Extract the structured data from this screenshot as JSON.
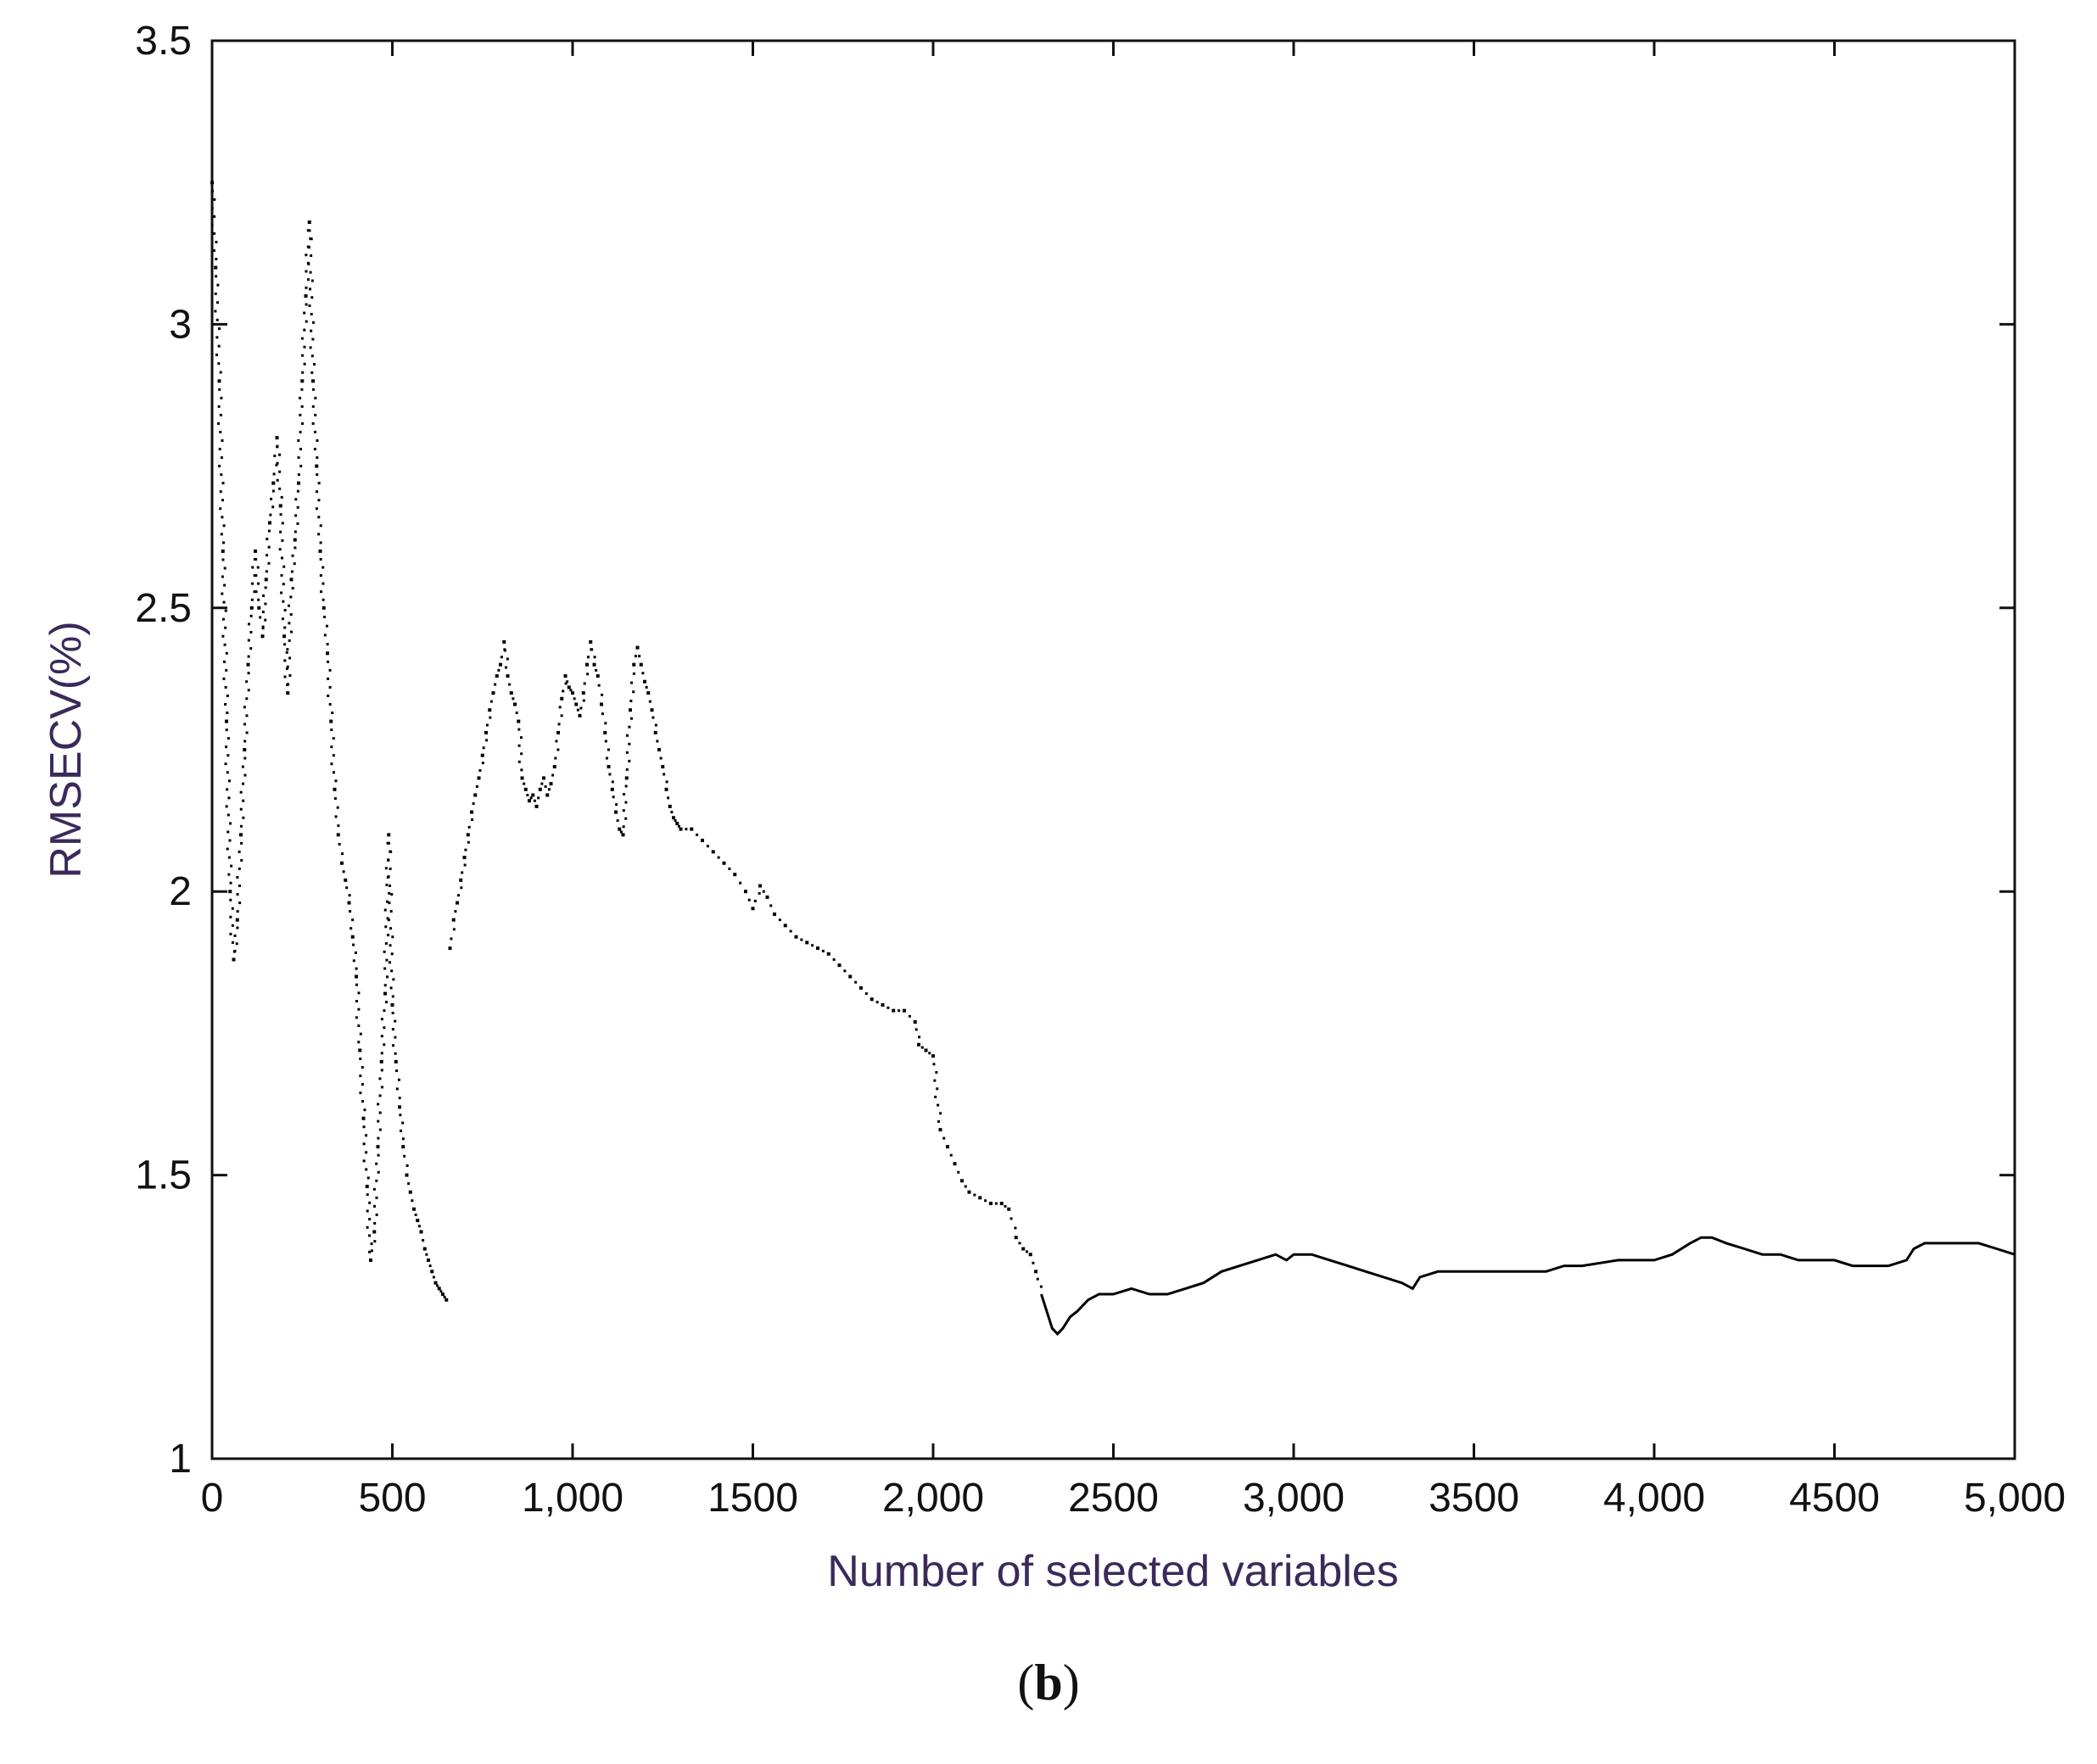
{
  "chart_data": {
    "type": "scatter",
    "title": "",
    "xlabel": "Number of selected variables",
    "ylabel": "RMSECV(%)",
    "xlim": [
      0,
      5000
    ],
    "ylim": [
      1,
      3.5
    ],
    "x_ticks": [
      0,
      500,
      1000,
      1500,
      2000,
      2500,
      3000,
      3500,
      4000,
      4500,
      5000
    ],
    "x_tick_labels": [
      "0",
      "500",
      "1,000",
      "1500",
      "2,000",
      "2500",
      "3,000",
      "3500",
      "4,000",
      "4500",
      "5,000"
    ],
    "y_ticks": [
      1,
      1.5,
      2,
      2.5,
      3,
      3.5
    ],
    "y_tick_labels": [
      "1",
      "1.5",
      "2",
      "2.5",
      "3",
      "3.5"
    ],
    "grid": false,
    "series": [
      {
        "points": [
          [
            0,
            3.25
          ],
          [
            10,
            3.1
          ],
          [
            20,
            2.9
          ],
          [
            30,
            2.6
          ],
          [
            40,
            2.3
          ],
          [
            50,
            2.0
          ],
          [
            60,
            1.88
          ],
          [
            70,
            1.95
          ],
          [
            80,
            2.1
          ],
          [
            90,
            2.25
          ],
          [
            100,
            2.4
          ],
          [
            110,
            2.5
          ],
          [
            120,
            2.6
          ],
          [
            130,
            2.5
          ],
          [
            140,
            2.45
          ],
          [
            150,
            2.55
          ],
          [
            160,
            2.65
          ],
          [
            170,
            2.72
          ],
          [
            180,
            2.8
          ],
          [
            190,
            2.68
          ],
          [
            200,
            2.45
          ],
          [
            210,
            2.35
          ],
          [
            220,
            2.55
          ],
          [
            230,
            2.62
          ],
          [
            240,
            2.72
          ],
          [
            250,
            2.9
          ],
          [
            260,
            3.05
          ],
          [
            270,
            3.18
          ],
          [
            280,
            2.9
          ],
          [
            290,
            2.75
          ],
          [
            300,
            2.6
          ],
          [
            310,
            2.5
          ],
          [
            320,
            2.42
          ],
          [
            330,
            2.3
          ],
          [
            340,
            2.18
          ],
          [
            350,
            2.1
          ],
          [
            360,
            2.05
          ],
          [
            370,
            2.02
          ],
          [
            380,
            1.98
          ],
          [
            390,
            1.92
          ],
          [
            400,
            1.85
          ],
          [
            410,
            1.72
          ],
          [
            420,
            1.6
          ],
          [
            430,
            1.48
          ],
          [
            440,
            1.35
          ],
          [
            450,
            1.4
          ],
          [
            460,
            1.55
          ],
          [
            470,
            1.7
          ],
          [
            480,
            1.82
          ],
          [
            490,
            2.1
          ],
          [
            500,
            1.8
          ],
          [
            510,
            1.7
          ],
          [
            520,
            1.62
          ],
          [
            530,
            1.55
          ],
          [
            540,
            1.5
          ],
          [
            550,
            1.47
          ],
          [
            560,
            1.44
          ],
          [
            570,
            1.42
          ],
          [
            580,
            1.4
          ],
          [
            590,
            1.37
          ],
          [
            600,
            1.35
          ],
          [
            610,
            1.33
          ],
          [
            620,
            1.31
          ],
          [
            630,
            1.3
          ],
          [
            640,
            1.29
          ],
          [
            650,
            1.28
          ],
          [
            660,
            1.9
          ],
          [
            670,
            1.95
          ],
          [
            680,
            1.98
          ],
          [
            690,
            2.02
          ],
          [
            700,
            2.06
          ],
          [
            710,
            2.1
          ],
          [
            720,
            2.14
          ],
          [
            730,
            2.17
          ],
          [
            740,
            2.2
          ],
          [
            750,
            2.24
          ],
          [
            760,
            2.28
          ],
          [
            770,
            2.32
          ],
          [
            780,
            2.35
          ],
          [
            790,
            2.38
          ],
          [
            800,
            2.4
          ],
          [
            810,
            2.44
          ],
          [
            820,
            2.38
          ],
          [
            830,
            2.35
          ],
          [
            840,
            2.33
          ],
          [
            850,
            2.3
          ],
          [
            860,
            2.2
          ],
          [
            870,
            2.18
          ],
          [
            880,
            2.16
          ],
          [
            890,
            2.17
          ],
          [
            900,
            2.15
          ],
          [
            910,
            2.18
          ],
          [
            920,
            2.2
          ],
          [
            930,
            2.17
          ],
          [
            940,
            2.19
          ],
          [
            950,
            2.22
          ],
          [
            960,
            2.28
          ],
          [
            970,
            2.34
          ],
          [
            980,
            2.38
          ],
          [
            990,
            2.36
          ],
          [
            1000,
            2.35
          ],
          [
            1010,
            2.33
          ],
          [
            1020,
            2.31
          ],
          [
            1030,
            2.35
          ],
          [
            1040,
            2.4
          ],
          [
            1050,
            2.44
          ],
          [
            1060,
            2.4
          ],
          [
            1070,
            2.38
          ],
          [
            1080,
            2.33
          ],
          [
            1090,
            2.28
          ],
          [
            1100,
            2.22
          ],
          [
            1110,
            2.18
          ],
          [
            1120,
            2.14
          ],
          [
            1130,
            2.11
          ],
          [
            1140,
            2.1
          ],
          [
            1150,
            2.2
          ],
          [
            1160,
            2.32
          ],
          [
            1170,
            2.4
          ],
          [
            1180,
            2.43
          ],
          [
            1190,
            2.4
          ],
          [
            1200,
            2.37
          ],
          [
            1210,
            2.35
          ],
          [
            1220,
            2.32
          ],
          [
            1230,
            2.28
          ],
          [
            1240,
            2.25
          ],
          [
            1250,
            2.22
          ],
          [
            1260,
            2.18
          ],
          [
            1270,
            2.15
          ],
          [
            1280,
            2.13
          ],
          [
            1290,
            2.12
          ],
          [
            1300,
            2.11
          ],
          [
            1330,
            2.11
          ],
          [
            1360,
            2.09
          ],
          [
            1390,
            2.07
          ],
          [
            1420,
            2.05
          ],
          [
            1450,
            2.03
          ],
          [
            1480,
            2.0
          ],
          [
            1500,
            1.97
          ],
          [
            1520,
            2.01
          ],
          [
            1540,
            1.99
          ],
          [
            1560,
            1.96
          ],
          [
            1590,
            1.94
          ],
          [
            1620,
            1.92
          ],
          [
            1650,
            1.91
          ],
          [
            1680,
            1.9
          ],
          [
            1710,
            1.89
          ],
          [
            1740,
            1.87
          ],
          [
            1770,
            1.85
          ],
          [
            1800,
            1.83
          ],
          [
            1830,
            1.81
          ],
          [
            1860,
            1.8
          ],
          [
            1890,
            1.79
          ],
          [
            1920,
            1.79
          ],
          [
            1950,
            1.77
          ],
          [
            1960,
            1.73
          ],
          [
            1980,
            1.72
          ],
          [
            2000,
            1.71
          ],
          [
            2020,
            1.58
          ],
          [
            2040,
            1.55
          ],
          [
            2060,
            1.52
          ],
          [
            2080,
            1.49
          ],
          [
            2100,
            1.47
          ],
          [
            2130,
            1.46
          ],
          [
            2160,
            1.45
          ],
          [
            2190,
            1.45
          ],
          [
            2210,
            1.44
          ],
          [
            2230,
            1.39
          ],
          [
            2250,
            1.37
          ],
          [
            2270,
            1.36
          ],
          [
            2285,
            1.33
          ],
          [
            2300,
            1.29
          ],
          [
            2315,
            1.26
          ],
          [
            2330,
            1.23
          ],
          [
            2345,
            1.22
          ],
          [
            2360,
            1.23
          ],
          [
            2380,
            1.25
          ],
          [
            2400,
            1.26
          ],
          [
            2430,
            1.28
          ],
          [
            2460,
            1.29
          ],
          [
            2500,
            1.29
          ],
          [
            2550,
            1.3
          ],
          [
            2600,
            1.29
          ],
          [
            2650,
            1.29
          ],
          [
            2700,
            1.3
          ],
          [
            2750,
            1.31
          ],
          [
            2800,
            1.33
          ],
          [
            2850,
            1.34
          ],
          [
            2900,
            1.35
          ],
          [
            2950,
            1.36
          ],
          [
            2980,
            1.35
          ],
          [
            3000,
            1.36
          ],
          [
            3050,
            1.36
          ],
          [
            3100,
            1.35
          ],
          [
            3150,
            1.34
          ],
          [
            3200,
            1.33
          ],
          [
            3250,
            1.32
          ],
          [
            3300,
            1.31
          ],
          [
            3330,
            1.3
          ],
          [
            3350,
            1.32
          ],
          [
            3400,
            1.33
          ],
          [
            3450,
            1.33
          ],
          [
            3500,
            1.33
          ],
          [
            3600,
            1.33
          ],
          [
            3700,
            1.33
          ],
          [
            3750,
            1.34
          ],
          [
            3800,
            1.34
          ],
          [
            3900,
            1.35
          ],
          [
            4000,
            1.35
          ],
          [
            4050,
            1.36
          ],
          [
            4100,
            1.38
          ],
          [
            4130,
            1.39
          ],
          [
            4160,
            1.39
          ],
          [
            4200,
            1.38
          ],
          [
            4250,
            1.37
          ],
          [
            4300,
            1.36
          ],
          [
            4350,
            1.36
          ],
          [
            4400,
            1.35
          ],
          [
            4450,
            1.35
          ],
          [
            4500,
            1.35
          ],
          [
            4550,
            1.34
          ],
          [
            4600,
            1.34
          ],
          [
            4650,
            1.34
          ],
          [
            4700,
            1.35
          ],
          [
            4720,
            1.37
          ],
          [
            4750,
            1.38
          ],
          [
            4800,
            1.38
          ],
          [
            4850,
            1.38
          ],
          [
            4900,
            1.38
          ],
          [
            4950,
            1.37
          ],
          [
            5000,
            1.36
          ]
        ]
      }
    ]
  },
  "caption": {
    "open": "(",
    "letter": "b",
    "close": ")"
  }
}
